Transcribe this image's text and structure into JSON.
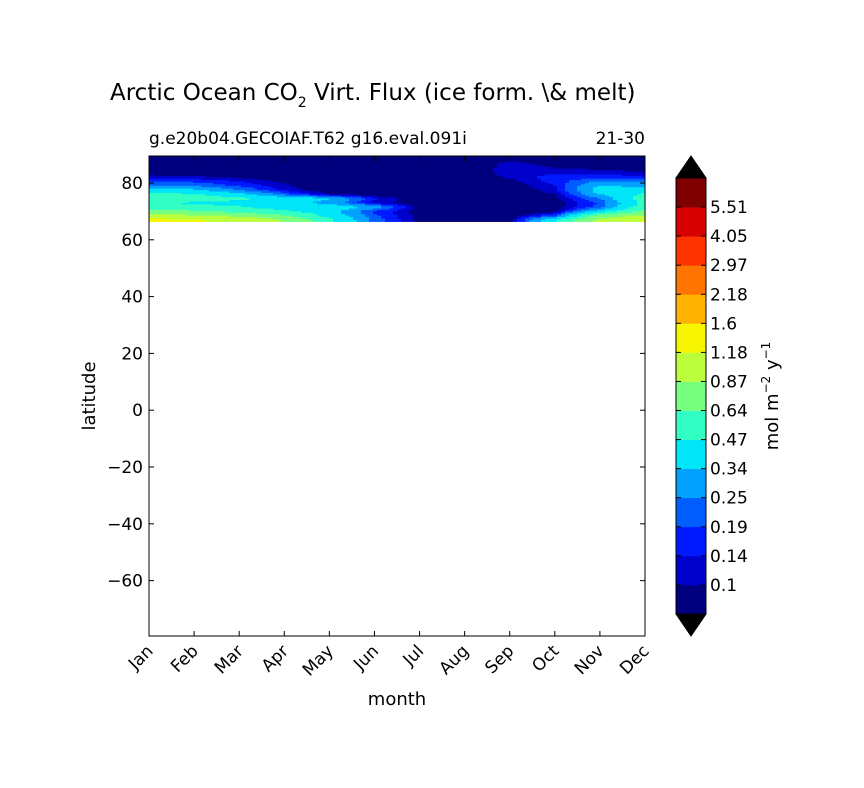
{
  "chart_data": {
    "type": "heatmap",
    "title": {
      "prefix": "Arctic Ocean CO",
      "subscript": "2",
      "suffix": "  Virt. Flux (ice form. \\& melt)"
    },
    "subtitle_left": "g.e20b04.GECOIAF.T62 g16.eval.091i",
    "subtitle_right": "21-30",
    "xlabel": "month",
    "ylabel": "latitude",
    "x_ticks": [
      "Jan",
      "Feb",
      "Mar",
      "Apr",
      "May",
      "Jun",
      "Jul",
      "Aug",
      "Sep",
      "Oct",
      "Nov",
      "Dec"
    ],
    "x_range": [
      1,
      12
    ],
    "y_range": [
      -79.5,
      89.5
    ],
    "y_ticks": [
      80,
      60,
      40,
      20,
      0,
      -20,
      -40,
      -60
    ],
    "y_tick_labels": [
      "80",
      "60",
      "40",
      "20",
      "0",
      "−20",
      "−40",
      "−60"
    ],
    "data_lat_range": [
      66.5,
      89.5
    ],
    "colorbar": {
      "label": {
        "a": "mol m",
        "a_sup": "−2",
        "b": " y",
        "b_sup": "−1"
      },
      "levels": [
        0.1,
        0.14,
        0.19,
        0.25,
        0.34,
        0.47,
        0.64,
        0.87,
        1.18,
        1.6,
        2.18,
        2.97,
        4.05,
        5.51
      ],
      "tick_labels": [
        "0.1",
        "0.14",
        "0.19",
        "0.25",
        "0.34",
        "0.47",
        "0.64",
        "0.87",
        "1.18",
        "1.6",
        "2.18",
        "2.97",
        "4.05",
        "5.51"
      ],
      "colors": [
        "#00007f",
        "#0000cb",
        "#0019ff",
        "#005dff",
        "#00a1ff",
        "#00e5f7",
        "#33ffc4",
        "#77ff80",
        "#bbff3c",
        "#f8f500",
        "#ffb300",
        "#ff7300",
        "#ff3300",
        "#d70000",
        "#7f0000"
      ],
      "extend": "both",
      "extend_color": "#000000"
    },
    "field_description": "contour fill of flux by month (x) and latitude (y); values are 0–1.3 in the Arctic band 66.5–89.5 N and blank elsewhere",
    "lat_rows": [
      89.5,
      86.5,
      84,
      82,
      80.5,
      79,
      77.5,
      76,
      74.5,
      73,
      71.5,
      70,
      68.5,
      67
    ],
    "values": [
      [
        0.05,
        0.05,
        0.05,
        0.05,
        0.05,
        0.05,
        0.05,
        0.05,
        0.07,
        0.05,
        0.05,
        0.05
      ],
      [
        0.05,
        0.05,
        0.05,
        0.05,
        0.05,
        0.05,
        0.05,
        0.05,
        0.12,
        0.08,
        0.07,
        0.06
      ],
      [
        0.07,
        0.06,
        0.05,
        0.05,
        0.05,
        0.05,
        0.05,
        0.05,
        0.13,
        0.12,
        0.11,
        0.1
      ],
      [
        0.12,
        0.11,
        0.09,
        0.06,
        0.05,
        0.05,
        0.05,
        0.05,
        0.11,
        0.16,
        0.17,
        0.15
      ],
      [
        0.2,
        0.18,
        0.14,
        0.09,
        0.05,
        0.05,
        0.05,
        0.05,
        0.08,
        0.16,
        0.26,
        0.24
      ],
      [
        0.26,
        0.24,
        0.18,
        0.11,
        0.05,
        0.05,
        0.05,
        0.05,
        0.07,
        0.14,
        0.35,
        0.3
      ],
      [
        0.4,
        0.36,
        0.25,
        0.13,
        0.06,
        0.05,
        0.05,
        0.05,
        0.06,
        0.12,
        0.4,
        0.42
      ],
      [
        0.52,
        0.48,
        0.38,
        0.22,
        0.1,
        0.06,
        0.05,
        0.05,
        0.06,
        0.1,
        0.34,
        0.5
      ],
      [
        0.6,
        0.55,
        0.5,
        0.42,
        0.35,
        0.15,
        0.06,
        0.05,
        0.05,
        0.08,
        0.25,
        0.55
      ],
      [
        0.48,
        0.45,
        0.42,
        0.38,
        0.3,
        0.12,
        0.06,
        0.05,
        0.05,
        0.07,
        0.2,
        0.52
      ],
      [
        0.55,
        0.52,
        0.48,
        0.4,
        0.45,
        0.3,
        0.08,
        0.05,
        0.05,
        0.07,
        0.22,
        0.55
      ],
      [
        0.7,
        0.66,
        0.58,
        0.5,
        0.38,
        0.18,
        0.07,
        0.05,
        0.05,
        0.08,
        0.4,
        0.68
      ],
      [
        0.95,
        0.9,
        0.8,
        0.65,
        0.42,
        0.2,
        0.08,
        0.05,
        0.06,
        0.2,
        0.7,
        0.92
      ],
      [
        1.25,
        1.2,
        1.1,
        0.85,
        0.5,
        0.22,
        0.08,
        0.05,
        0.08,
        0.45,
        0.95,
        1.2
      ]
    ]
  }
}
